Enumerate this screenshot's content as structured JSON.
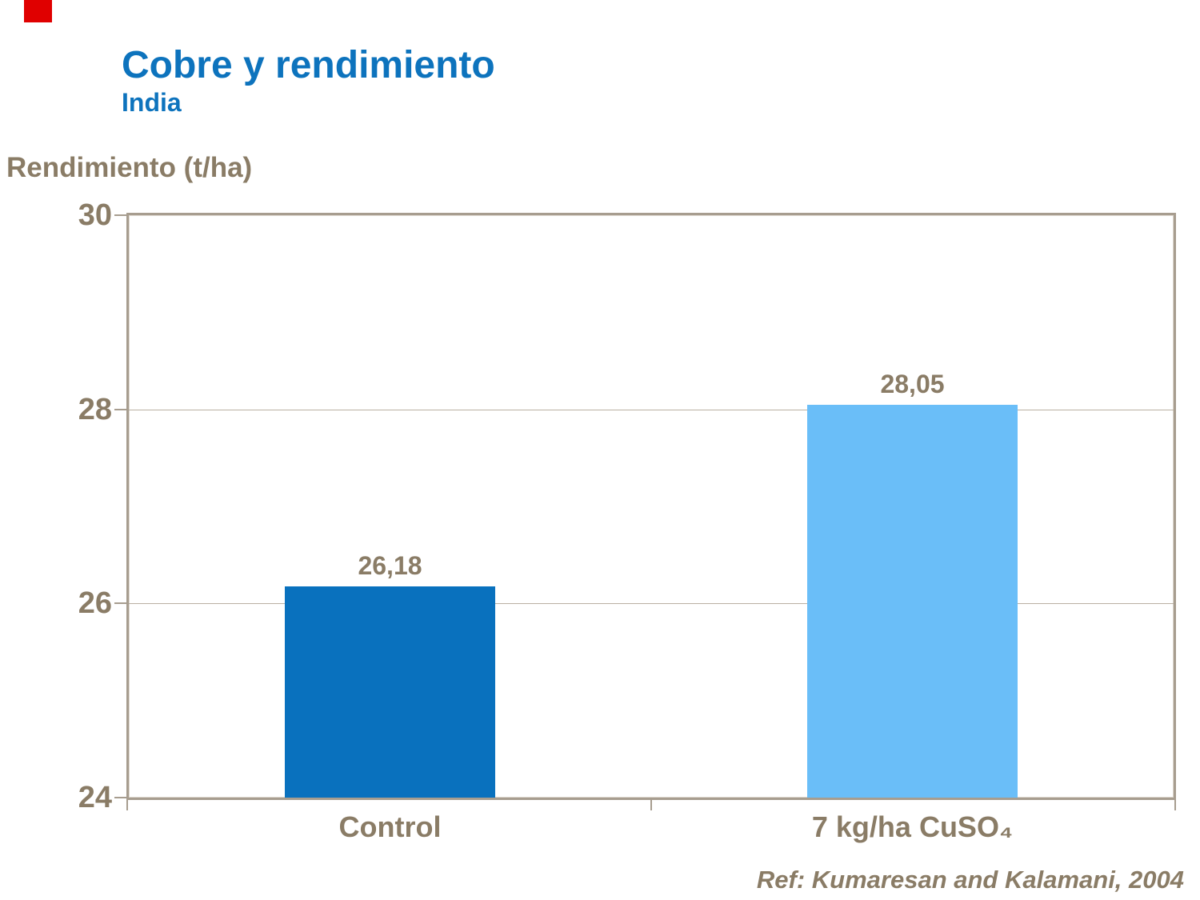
{
  "slide": {
    "title": "Cobre y rendimiento",
    "subtitle": "India",
    "reference": "Ref: Kumaresan and Kalamani, 2004"
  },
  "chart_data": {
    "type": "bar",
    "title": "Cobre y rendimiento — India",
    "ylabel": "Rendimiento (t/ha)",
    "xlabel": "",
    "categories": [
      "Control",
      "7 kg/ha CuSO₄"
    ],
    "values": [
      26.18,
      28.05
    ],
    "value_labels": [
      "26,18",
      "28,05"
    ],
    "ylim": [
      24,
      30
    ],
    "yticks": [
      30,
      28,
      26,
      24
    ],
    "gridlines_at": [
      28,
      26
    ],
    "legend": "none",
    "annotation": "Ref: Kumaresan and Kalamani, 2004"
  },
  "colors": {
    "title_blue": "#0d73bd",
    "text_brown": "#8a7c66",
    "frame_tan": "#a79d8f",
    "grid_tan": "#b9b0a2",
    "accent_red": "#e00000",
    "bar_colors": [
      "#0971be",
      "#6abef8"
    ]
  }
}
